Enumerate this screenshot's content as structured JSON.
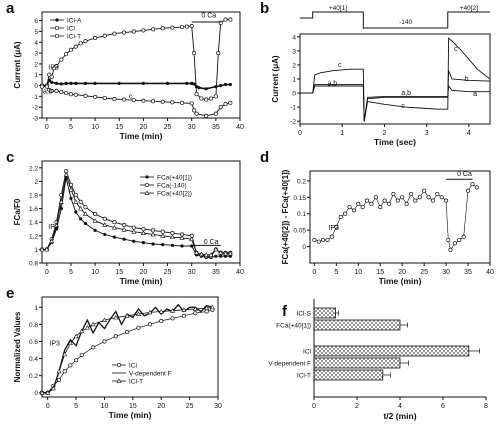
{
  "figure": {
    "panel_letters": [
      "a",
      "b",
      "c",
      "d",
      "e",
      "f"
    ]
  },
  "chart_data": [
    {
      "panel": "a",
      "type": "line",
      "xlabel": "Time (min)",
      "ylabel": "Current (μA)",
      "xlim": [
        -1,
        40
      ],
      "ylim": [
        -3,
        6.8
      ],
      "xticks": [
        0,
        5,
        10,
        15,
        20,
        25,
        30,
        35,
        40
      ],
      "yticks": [
        -3,
        -2,
        -1,
        0,
        1,
        2,
        3,
        4,
        5,
        6
      ],
      "annotations": [
        {
          "text": "IP3",
          "x": 0.3,
          "y": 1.5
        },
        {
          "text": "0 Ca",
          "x": 32,
          "y": 6.3
        },
        {
          "text": "a,b",
          "x": -0.8,
          "y": -0.75
        },
        {
          "text": "c",
          "x": 17,
          "y": -1.2
        }
      ],
      "legend": [
        "ICl-A",
        "ICl",
        "ICl-T"
      ],
      "series": [
        {
          "name": "ICl-A",
          "x": [
            -1,
            0,
            0.5,
            1,
            2,
            3,
            4,
            5,
            6,
            8,
            10,
            15,
            20,
            25,
            29,
            30,
            30.5,
            31,
            31.5,
            33,
            35,
            36,
            37,
            38
          ],
          "y": [
            0,
            0,
            0.5,
            0.3,
            0.2,
            0.15,
            0.2,
            0.2,
            0.2,
            0.2,
            0.2,
            0.2,
            0.2,
            0.2,
            0.2,
            0.2,
            0.15,
            -0.1,
            -0.2,
            -0.3,
            -0.1,
            0.0,
            0.1,
            0.1
          ]
        },
        {
          "name": "ICl",
          "x": [
            -1,
            0,
            0.5,
            1,
            1.5,
            2,
            3,
            4,
            5,
            6,
            7,
            8,
            10,
            12,
            14,
            16,
            18,
            20,
            22,
            24,
            26,
            28,
            29,
            30,
            30.5,
            31,
            32,
            33,
            34,
            35,
            35.5,
            36,
            37,
            38
          ],
          "y": [
            0,
            0,
            1.0,
            0.8,
            1.6,
            1.8,
            2.4,
            2.9,
            3.3,
            3.6,
            3.9,
            4.1,
            4.4,
            4.6,
            4.8,
            4.9,
            5.0,
            5.1,
            5.2,
            5.3,
            5.35,
            5.4,
            5.45,
            5.5,
            3.0,
            -0.8,
            -1.2,
            -1.3,
            -1.2,
            -1.0,
            3.0,
            5.8,
            6.1,
            6.1
          ]
        },
        {
          "name": "ICl-T",
          "x": [
            -1,
            0,
            0.5,
            1,
            2,
            3,
            4,
            5,
            6,
            8,
            10,
            12,
            14,
            16,
            18,
            20,
            22,
            24,
            26,
            28,
            30,
            30.5,
            31,
            33,
            35,
            36,
            37,
            38
          ],
          "y": [
            -0.1,
            -0.1,
            -0.4,
            -0.5,
            -0.5,
            -0.6,
            -0.7,
            -0.8,
            -0.85,
            -0.95,
            -1.05,
            -1.15,
            -1.25,
            -1.3,
            -1.35,
            -1.4,
            -1.45,
            -1.5,
            -1.55,
            -1.6,
            -1.65,
            -2.3,
            -2.6,
            -2.8,
            -2.6,
            -2.0,
            -1.7,
            -1.6
          ]
        }
      ]
    },
    {
      "panel": "b",
      "type": "line",
      "xlabel": "Time (sec)",
      "ylabel": "Current (μA)",
      "xlim": [
        0,
        4.5
      ],
      "ylim": [
        -2.2,
        4.2
      ],
      "xticks": [
        0,
        1,
        2,
        3,
        4
      ],
      "yticks": [
        -2,
        -1,
        0,
        1,
        2,
        3,
        4
      ],
      "protocol": {
        "labels": [
          "+40[1]",
          "-140",
          "+40[2]"
        ],
        "segments_s": [
          [
            0.3,
            1.5
          ],
          [
            1.5,
            3.5
          ],
          [
            3.5,
            4.5
          ]
        ]
      },
      "annotations": [
        {
          "text": "c",
          "x": 0.9,
          "y": 1.85
        },
        {
          "text": "a,b",
          "x": 0.65,
          "y": 0.55
        },
        {
          "text": "a,b",
          "x": 2.4,
          "y": -0.15
        },
        {
          "text": "c",
          "x": 2.4,
          "y": -1.05
        },
        {
          "text": "c",
          "x": 3.65,
          "y": 3.0
        },
        {
          "text": "b",
          "x": 3.9,
          "y": 0.85
        },
        {
          "text": "a",
          "x": 4.1,
          "y": -0.2
        }
      ],
      "series": [
        {
          "name": "a",
          "x": [
            0,
            0.3,
            0.35,
            0.8,
            1.5,
            1.52,
            1.6,
            2.0,
            2.5,
            3.0,
            3.5,
            3.52,
            3.6,
            4.0,
            4.5
          ],
          "y": [
            0,
            0,
            0.5,
            0.5,
            0.5,
            -2.0,
            -0.4,
            -0.3,
            -0.3,
            -0.3,
            -0.3,
            0.5,
            0.2,
            0.1,
            0.1
          ]
        },
        {
          "name": "b",
          "x": [
            0,
            0.3,
            0.35,
            0.8,
            1.5,
            1.52,
            1.6,
            2.0,
            2.5,
            3.0,
            3.5,
            3.52,
            3.6,
            4.0,
            4.5
          ],
          "y": [
            0,
            0,
            0.6,
            0.6,
            0.6,
            -2.0,
            -0.3,
            -0.25,
            -0.25,
            -0.25,
            -0.25,
            1.6,
            1.0,
            0.9,
            0.85
          ]
        },
        {
          "name": "c",
          "x": [
            0,
            0.3,
            0.35,
            0.5,
            0.8,
            1.2,
            1.5,
            1.52,
            1.6,
            2.0,
            2.5,
            3.0,
            3.3,
            3.5,
            3.52,
            3.6,
            3.8,
            4.0,
            4.2,
            4.5
          ],
          "y": [
            0,
            0,
            1.3,
            1.45,
            1.6,
            1.7,
            1.7,
            -2.0,
            -0.6,
            -0.8,
            -1.0,
            -1.1,
            -1.15,
            -1.15,
            3.9,
            3.7,
            3.1,
            2.4,
            1.7,
            1.0
          ]
        }
      ]
    },
    {
      "panel": "c",
      "type": "line",
      "xlabel": "Time (min)",
      "ylabel": "FCa/F0",
      "xlim": [
        -1,
        40
      ],
      "ylim": [
        0.8,
        2.3
      ],
      "xticks": [
        0,
        5,
        10,
        15,
        20,
        25,
        30,
        35,
        40
      ],
      "yticks": [
        0.8,
        1.0,
        1.2,
        1.4,
        1.6,
        1.8,
        2.0,
        2.2
      ],
      "legend": [
        "FCa(+40[1])",
        "FCa(-140)",
        "FCa(+40[2])"
      ],
      "annotations": [
        {
          "text": "IP3",
          "x": 0.3,
          "y": 1.3
        },
        {
          "text": "0 Ca",
          "x": 32.5,
          "y": 1.08
        }
      ],
      "series": [
        {
          "name": "FCa(+40[1])",
          "x": [
            -1,
            0,
            1,
            2,
            3,
            4,
            5,
            6,
            7,
            8,
            10,
            12,
            14,
            16,
            18,
            20,
            22,
            24,
            26,
            28,
            30,
            31,
            32,
            33,
            34,
            35,
            36,
            37,
            38
          ],
          "y": [
            1.0,
            1.0,
            1.1,
            1.3,
            1.6,
            2.05,
            1.75,
            1.55,
            1.45,
            1.38,
            1.28,
            1.22,
            1.18,
            1.15,
            1.12,
            1.1,
            1.08,
            1.07,
            1.06,
            1.05,
            1.05,
            0.92,
            0.9,
            0.88,
            0.88,
            0.9,
            0.9,
            0.9,
            0.9
          ]
        },
        {
          "name": "FCa(-140)",
          "x": [
            -1,
            0,
            1,
            2,
            3,
            4,
            5,
            6,
            7,
            8,
            10,
            12,
            14,
            16,
            18,
            20,
            22,
            24,
            26,
            28,
            30,
            31,
            32,
            33,
            34,
            35,
            36,
            37,
            38
          ],
          "y": [
            1.0,
            1.0,
            1.15,
            1.4,
            1.8,
            2.15,
            1.95,
            1.8,
            1.7,
            1.62,
            1.52,
            1.45,
            1.4,
            1.36,
            1.32,
            1.3,
            1.28,
            1.26,
            1.24,
            1.22,
            1.2,
            0.95,
            0.92,
            0.9,
            0.9,
            1.0,
            0.95,
            0.95,
            0.95
          ]
        },
        {
          "name": "FCa(+40[2])",
          "x": [
            -1,
            0,
            1,
            2,
            3,
            4,
            5,
            6,
            7,
            8,
            10,
            12,
            14,
            16,
            18,
            20,
            22,
            24,
            26,
            28,
            30,
            31,
            32,
            33,
            34,
            35,
            36,
            37,
            38
          ],
          "y": [
            1.0,
            1.0,
            1.12,
            1.35,
            1.7,
            2.1,
            1.88,
            1.7,
            1.6,
            1.52,
            1.42,
            1.36,
            1.32,
            1.29,
            1.26,
            1.24,
            1.22,
            1.2,
            1.18,
            1.17,
            1.15,
            0.95,
            0.93,
            0.92,
            0.92,
            1.0,
            0.95,
            0.94,
            0.94
          ]
        }
      ]
    },
    {
      "panel": "d",
      "type": "scatter",
      "xlabel": "Time (min)",
      "ylabel": "FCa(+40[2]) - FCa(+40[1])",
      "xlim": [
        -1,
        40
      ],
      "ylim": [
        -0.05,
        0.23
      ],
      "xticks": [
        0,
        5,
        10,
        15,
        20,
        25,
        30,
        35,
        40
      ],
      "yticks": [
        0.0,
        0.05,
        0.1,
        0.15,
        0.2
      ],
      "annotations": [
        {
          "text": "IP3",
          "x": 3.2,
          "y": 0.05
        },
        {
          "text": "0 Ca",
          "x": 32.5,
          "y": 0.215
        }
      ],
      "series": [
        {
          "name": "",
          "x": [
            0,
            1,
            2,
            3,
            4,
            5,
            6,
            7,
            8,
            9,
            10,
            11,
            12,
            13,
            14,
            15,
            16,
            17,
            18,
            19,
            20,
            21,
            22,
            23,
            24,
            25,
            26,
            27,
            28,
            29,
            30,
            30.5,
            31,
            32,
            33,
            34,
            35,
            36,
            37
          ],
          "y": [
            0.02,
            0.015,
            0.02,
            0.02,
            0.03,
            0.06,
            0.09,
            0.1,
            0.12,
            0.11,
            0.13,
            0.12,
            0.14,
            0.13,
            0.15,
            0.12,
            0.14,
            0.13,
            0.16,
            0.14,
            0.15,
            0.13,
            0.16,
            0.14,
            0.15,
            0.17,
            0.15,
            0.14,
            0.16,
            0.15,
            0.14,
            0.02,
            -0.01,
            0.01,
            0.02,
            0.03,
            0.17,
            0.19,
            0.18
          ]
        }
      ]
    },
    {
      "panel": "e",
      "type": "line",
      "xlabel": "Time (min)",
      "ylabel": "Normalized Values",
      "xlim": [
        -1,
        30
      ],
      "ylim": [
        -0.05,
        1.12
      ],
      "xticks": [
        0,
        5,
        10,
        15,
        20,
        25,
        30
      ],
      "yticks": [
        0.0,
        0.2,
        0.4,
        0.6,
        0.8,
        1.0
      ],
      "legend": [
        "ICl",
        "V-dependent F",
        "ICl-T"
      ],
      "annotations": [
        {
          "text": "IP3",
          "x": 0.3,
          "y": 0.55
        }
      ],
      "series": [
        {
          "name": "ICl",
          "x": [
            -1,
            0,
            1,
            2,
            3,
            4,
            5,
            6,
            8,
            10,
            12,
            14,
            16,
            18,
            20,
            22,
            24,
            26,
            28,
            29
          ],
          "y": [
            0,
            0,
            0.08,
            0.15,
            0.25,
            0.32,
            0.38,
            0.44,
            0.53,
            0.6,
            0.66,
            0.71,
            0.76,
            0.8,
            0.84,
            0.87,
            0.9,
            0.93,
            0.95,
            0.97
          ]
        },
        {
          "name": "V-dependent F",
          "x": [
            -1,
            0,
            1,
            2,
            3,
            4,
            5,
            6,
            7,
            8,
            9,
            10,
            11,
            12,
            13,
            14,
            15,
            16,
            17,
            18,
            19,
            20,
            21,
            22,
            23,
            24,
            25,
            26,
            27,
            28,
            29
          ],
          "y": [
            0,
            0,
            0.05,
            0.25,
            0.5,
            0.62,
            0.55,
            0.72,
            0.85,
            0.7,
            0.82,
            0.75,
            0.86,
            0.95,
            0.8,
            0.92,
            0.88,
            0.98,
            0.9,
            0.93,
            1.0,
            0.92,
            0.98,
            0.95,
            1.03,
            0.95,
            1.0,
            1.0,
            0.95,
            1.02,
            1.0
          ]
        },
        {
          "name": "ICl-T",
          "x": [
            -1,
            0,
            1,
            2,
            3,
            4,
            5,
            6,
            7,
            8,
            10,
            12,
            14,
            16,
            18,
            20,
            22,
            24,
            26,
            28,
            29
          ],
          "y": [
            0,
            0,
            0.05,
            0.25,
            0.45,
            0.58,
            0.66,
            0.72,
            0.76,
            0.8,
            0.85,
            0.88,
            0.9,
            0.92,
            0.94,
            0.95,
            0.96,
            0.97,
            0.98,
            0.99,
            1.0
          ]
        }
      ]
    },
    {
      "panel": "f",
      "type": "bar",
      "orientation": "horizontal",
      "xlabel": "t/2 (min)",
      "xlim": [
        0,
        8
      ],
      "xticks": [
        0,
        2,
        4,
        6,
        8
      ],
      "categories": [
        "ICl-S",
        "FCa(+40[1])",
        "ICl",
        "V-dependent F",
        "ICl-T"
      ],
      "values": [
        1.0,
        4.0,
        7.2,
        4.0,
        3.2
      ],
      "errors": [
        0.15,
        0.35,
        0.5,
        0.4,
        0.35
      ],
      "groups": [
        [
          0,
          1
        ],
        [
          2,
          3,
          4
        ]
      ]
    }
  ]
}
